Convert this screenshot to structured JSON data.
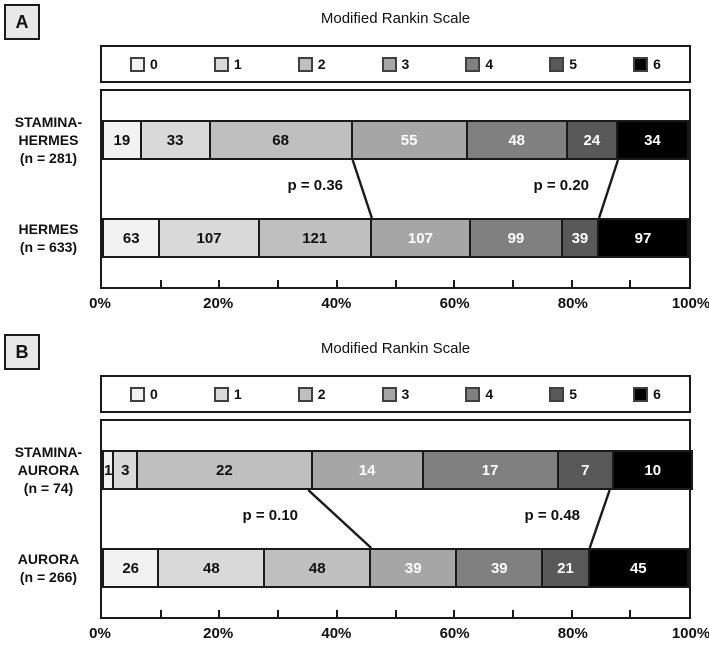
{
  "figure": {
    "background": "#ffffff"
  },
  "chart_data": [
    {
      "type": "bar",
      "variant": "stacked-horizontal",
      "panel": "A",
      "title": "Modified Rankin Scale",
      "legend_labels": [
        "0",
        "1",
        "2",
        "3",
        "4",
        "5",
        "6"
      ],
      "segment_colors": [
        "#f2f2f2",
        "#d9d9d9",
        "#bfbfbf",
        "#a6a6a6",
        "#808080",
        "#595959",
        "#000000"
      ],
      "segment_text_colors": [
        "#111111",
        "#111111",
        "#111111",
        "#ffffff",
        "#ffffff",
        "#ffffff",
        "#ffffff"
      ],
      "xlim": [
        0,
        100
      ],
      "x_tick_values": [
        0,
        20,
        40,
        60,
        80,
        100
      ],
      "x_tick_labels": [
        "0%",
        "20%",
        "40%",
        "60%",
        "80%",
        "100%"
      ],
      "x_minor_tick_step": 10,
      "grid": false,
      "legend_position": "top",
      "rows": [
        {
          "label_lines": [
            "STAMINA-",
            "HERMES",
            "(n = 281)"
          ],
          "n": 281,
          "values": [
            19,
            33,
            68,
            55,
            48,
            24,
            34
          ]
        },
        {
          "label_lines": [
            "HERMES",
            "(n = 633)"
          ],
          "n": 633,
          "values": [
            63,
            107,
            121,
            107,
            99,
            39,
            97
          ]
        }
      ],
      "comparisons": [
        {
          "text": "p = 0.36",
          "after_index": 2
        },
        {
          "text": "p = 0.20",
          "after_index": 5
        }
      ]
    },
    {
      "type": "bar",
      "variant": "stacked-horizontal",
      "panel": "B",
      "title": "Modified Rankin Scale",
      "legend_labels": [
        "0",
        "1",
        "2",
        "3",
        "4",
        "5",
        "6"
      ],
      "segment_colors": [
        "#f2f2f2",
        "#d9d9d9",
        "#bfbfbf",
        "#a6a6a6",
        "#808080",
        "#595959",
        "#000000"
      ],
      "segment_text_colors": [
        "#111111",
        "#111111",
        "#111111",
        "#ffffff",
        "#ffffff",
        "#ffffff",
        "#ffffff"
      ],
      "xlim": [
        0,
        100
      ],
      "x_tick_values": [
        0,
        20,
        40,
        60,
        80,
        100
      ],
      "x_tick_labels": [
        "0%",
        "20%",
        "40%",
        "60%",
        "80%",
        "100%"
      ],
      "x_minor_tick_step": 10,
      "grid": false,
      "legend_position": "top",
      "rows": [
        {
          "label_lines": [
            "STAMINA-",
            "AURORA",
            "(n = 74)"
          ],
          "n": 74,
          "values": [
            1,
            3,
            22,
            14,
            17,
            7,
            10
          ]
        },
        {
          "label_lines": [
            "AURORA",
            "(n = 266)"
          ],
          "n": 266,
          "values": [
            26,
            48,
            48,
            39,
            39,
            21,
            45
          ]
        }
      ],
      "comparisons": [
        {
          "text": "p = 0.10",
          "after_index": 2
        },
        {
          "text": "p = 0.48",
          "after_index": 5
        }
      ]
    }
  ]
}
